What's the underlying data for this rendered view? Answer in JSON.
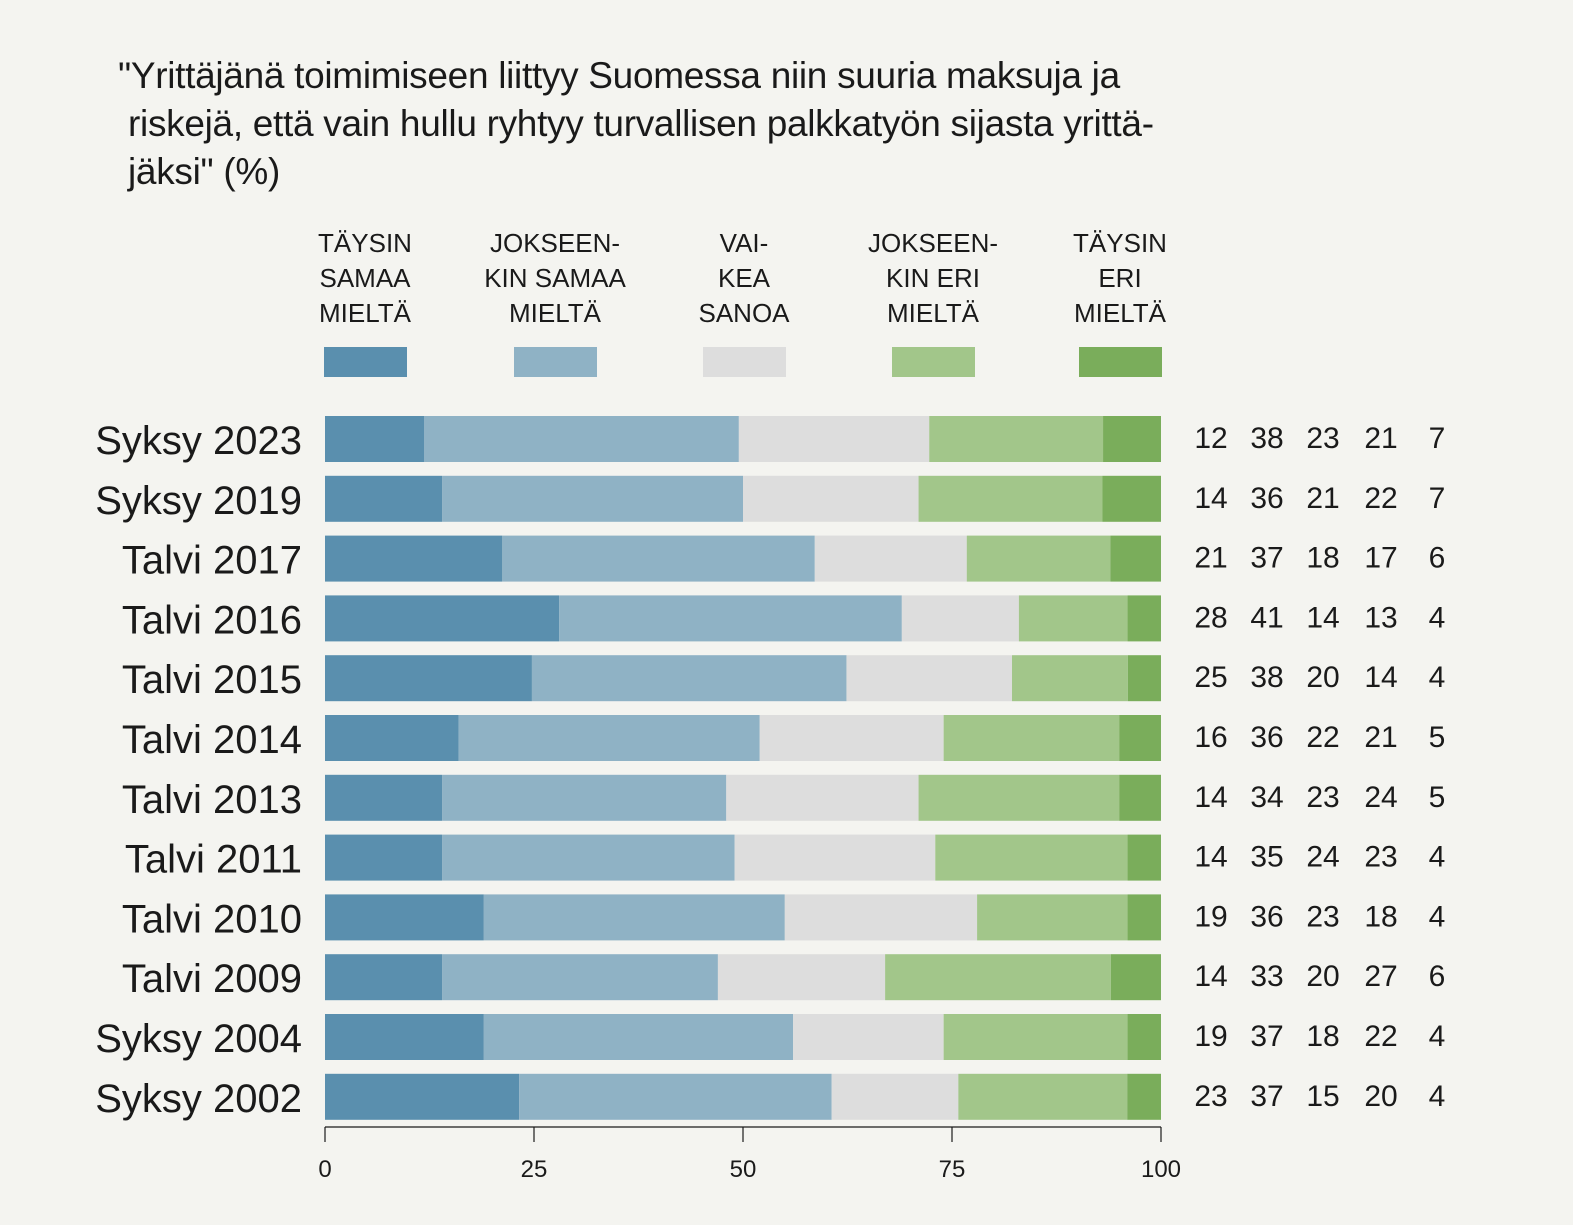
{
  "chart_data": {
    "type": "bar",
    "orientation": "horizontal",
    "stacked": true,
    "normalized": true,
    "title_lines": [
      "\"Yrittäjänä toimimiseen liittyy Suomessa niin suuria maksuja ja",
      "riskejä, että vain hullu ryhtyy turvallisen palkkatyön sijasta yrittä-",
      "jäksi\" (%)"
    ],
    "xlabel": "",
    "ylabel": "",
    "xlim": [
      0,
      100
    ],
    "xticks": [
      0,
      25,
      50,
      75,
      100
    ],
    "grid": false,
    "legend_position": "top",
    "categories": [
      "Syksy 2023",
      "Syksy 2019",
      "Talvi 2017",
      "Talvi 2016",
      "Talvi 2015",
      "Talvi 2014",
      "Talvi 2013",
      "Talvi 2011",
      "Talvi 2010",
      "Talvi 2009",
      "Syksy 2004",
      "Syksy 2002"
    ],
    "series": [
      {
        "name": "TÄYSIN SAMAA MIELTÄ",
        "legend_lines": [
          "TÄYSIN",
          "SAMAA",
          "MIELTÄ"
        ],
        "color": "#5a8fae",
        "values": [
          12,
          14,
          21,
          28,
          25,
          16,
          14,
          14,
          19,
          14,
          19,
          23
        ]
      },
      {
        "name": "JOKSEENKIN SAMAA MIELTÄ",
        "legend_lines": [
          "JOKSEEN-",
          "KIN SAMAA",
          "MIELTÄ"
        ],
        "color": "#8fb2c5",
        "values": [
          38,
          36,
          37,
          41,
          38,
          36,
          34,
          35,
          36,
          33,
          37,
          37
        ]
      },
      {
        "name": "VAIKEA SANOA",
        "legend_lines": [
          "VAI-",
          "KEA",
          "SANOA"
        ],
        "color": "#dddddd",
        "values": [
          23,
          21,
          18,
          14,
          20,
          22,
          23,
          24,
          23,
          20,
          18,
          15
        ]
      },
      {
        "name": "JOKSEENKIN ERI MIELTÄ",
        "legend_lines": [
          "JOKSEEN-",
          "KIN ERI",
          "MIELTÄ"
        ],
        "color": "#a2c68a",
        "values": [
          21,
          22,
          17,
          13,
          14,
          21,
          24,
          23,
          18,
          27,
          22,
          20
        ]
      },
      {
        "name": "TÄYSIN ERI MIELTÄ",
        "legend_lines": [
          "TÄYSIN",
          "ERI",
          "MIELTÄ"
        ],
        "color": "#7aad5b",
        "values": [
          7,
          7,
          6,
          4,
          4,
          5,
          5,
          4,
          4,
          6,
          4,
          4
        ]
      }
    ]
  }
}
